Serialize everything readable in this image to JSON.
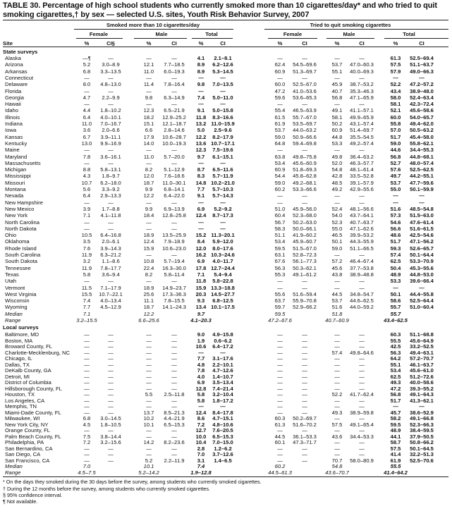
{
  "title": "TABLE 30. Percentage of high school students who currently smoked more than 10 cigarettes/day* and who tried to quit smoking cigarettes,† by sex — selected U.S. sites, Youth Risk Behavior Survey, 2007",
  "headers": {
    "group1": "Smoked more than 10 cigarettes/day",
    "group2": "Tried to quit smoking cigarettes",
    "female": "Female",
    "male": "Male",
    "total": "Total",
    "site": "Site",
    "pct": "%",
    "ci": "CI",
    "ci_first": "CI§"
  },
  "state_surveys": {
    "label": "State surveys",
    "rows": [
      {
        "site": "Alaska",
        "cells": [
          "—¶",
          "—",
          "—",
          "—",
          "4.1",
          "2.1–8.1",
          "—",
          "—",
          "—",
          "—",
          "61.3",
          "52.5–69.4"
        ]
      },
      {
        "site": "Arizona",
        "cells": [
          "5.2",
          "3.0–8.9",
          "12.1",
          "7.7–18.5",
          "8.9",
          "6.2–12.6",
          "62.4",
          "54.5–69.6",
          "53.7",
          "47.0–60.3",
          "57.5",
          "51.1–63.7"
        ]
      },
      {
        "site": "Arkansas",
        "cells": [
          "6.8",
          "3.3–13.5",
          "11.0",
          "6.0–19.3",
          "8.9",
          "5.3–14.5",
          "60.9",
          "51.3–69.7",
          "55.1",
          "40.0–69.3",
          "57.9",
          "49.0–66.3"
        ]
      },
      {
        "site": "Connecticut",
        "cells": [
          "—",
          "—",
          "—",
          "—",
          "—",
          "—",
          "—",
          "—",
          "—",
          "—",
          "—",
          "—"
        ]
      },
      {
        "site": "Delaware",
        "cells": [
          "8.0",
          "4.8–13.0",
          "11.4",
          "7.8–16.4",
          "9.8",
          "7.0–13.5",
          "60.0",
          "52.5–67.0",
          "45.9",
          "38.7–53.2",
          "52.2",
          "47.2–57.2"
        ]
      },
      {
        "site": "Florida",
        "cells": [
          "—",
          "—",
          "—",
          "—",
          "—",
          "—",
          "47.2",
          "41.0–53.6",
          "40.7",
          "35.3–46.3",
          "43.4",
          "38.9–48.0"
        ]
      },
      {
        "site": "Georgia",
        "cells": [
          "4.7",
          "2.2–9.9",
          "9.8",
          "6.3–14.9",
          "7.4",
          "5.0–11.0",
          "59.6",
          "53.6–65.3",
          "56.8",
          "47.1–65.9",
          "58.0",
          "52.4–63.4"
        ]
      },
      {
        "site": "Hawaii",
        "cells": [
          "—",
          "—",
          "—",
          "—",
          "—",
          "—",
          "—",
          "—",
          "—",
          "—",
          "58.1",
          "42.3–72.4"
        ]
      },
      {
        "site": "Idaho",
        "cells": [
          "4.4",
          "1.8–10.2",
          "12.3",
          "6.5–21.9",
          "9.1",
          "5.0–15.8",
          "55.4",
          "46.5–63.9",
          "49.1",
          "41.1–57.1",
          "52.1",
          "45.6–58.6"
        ]
      },
      {
        "site": "Illinois",
        "cells": [
          "6.4",
          "4.0–10.1",
          "18.2",
          "12.9–25.2",
          "11.8",
          "8.3–16.6",
          "61.5",
          "55.7–67.0",
          "58.1",
          "49.9–65.9",
          "60.0",
          "54.0–65.7"
        ]
      },
      {
        "site": "Indiana",
        "cells": [
          "11.0",
          "7.0–16.7",
          "15.1",
          "12.1–18.7",
          "13.2",
          "11.0–15.9",
          "61.9",
          "53.5–69.7",
          "50.2",
          "43.1–57.4",
          "55.8",
          "49.4–62.0"
        ]
      },
      {
        "site": "Iowa",
        "cells": [
          "3.6",
          "2.0–6.6",
          "6.6",
          "2.8–14.6",
          "5.0",
          "2.5–9.6",
          "53.7",
          "44.0–63.2",
          "60.9",
          "51.4–69.7",
          "57.0",
          "50.5–63.2"
        ]
      },
      {
        "site": "Kansas",
        "cells": [
          "6.7",
          "3.9–11.1",
          "17.9",
          "10.6–28.7",
          "12.2",
          "8.2–17.9",
          "59.0",
          "50.9–66.6",
          "44.8",
          "35.5–54.5",
          "51.7",
          "45.4–58.0"
        ]
      },
      {
        "site": "Kentucky",
        "cells": [
          "13.0",
          "9.9–16.9",
          "14.0",
          "10.0–19.3",
          "13.6",
          "10.7–17.1",
          "64.8",
          "59.4–69.8",
          "53.3",
          "49.2–57.4",
          "59.0",
          "55.8–62.1"
        ]
      },
      {
        "site": "Maine",
        "cells": [
          "—",
          "—",
          "—",
          "—",
          "12.3",
          "7.5–19.6",
          "—",
          "—",
          "—",
          "—",
          "44.6",
          "34.4–55.3"
        ]
      },
      {
        "site": "Maryland",
        "cells": [
          "7.8",
          "3.6–16.1",
          "11.0",
          "5.7–20.0",
          "9.7",
          "6.1–15.1",
          "63.8",
          "49.8–75.8",
          "49.8",
          "36.4–63.2",
          "56.8",
          "44.8–68.1"
        ]
      },
      {
        "site": "Massachusetts",
        "cells": [
          "—",
          "—",
          "—",
          "—",
          "—",
          "—",
          "53.4",
          "45.6–60.9",
          "52.0",
          "46.3–57.7",
          "52.7",
          "48.0–57.4"
        ]
      },
      {
        "site": "Michigan",
        "cells": [
          "8.8",
          "5.8–13.1",
          "8.2",
          "5.1–12.9",
          "8.7",
          "6.5–11.6",
          "60.9",
          "51.8–69.3",
          "54.8",
          "48.1–61.4",
          "57.6",
          "52.5–62.5"
        ]
      },
      {
        "site": "Mississippi",
        "cells": [
          "4.3",
          "1.8–9.7",
          "12.0",
          "7.6–18.6",
          "8.3",
          "5.7–11.9",
          "54.4",
          "45.8–62.8",
          "42.8",
          "33.5–52.8",
          "49.7",
          "44.2–55.1"
        ]
      },
      {
        "site": "Missouri",
        "cells": [
          "10.7",
          "6.2–18.0",
          "18.7",
          "11.0–30.1",
          "14.8",
          "10.2–21.0",
          "59.0",
          "49.2–68.1",
          "48.5",
          "39.1–57.9",
          "53.7",
          "47.7–59.6"
        ]
      },
      {
        "site": "Montana",
        "cells": [
          "5.6",
          "3.3–9.2",
          "9.9",
          "6.8–14.1",
          "7.7",
          "5.7–10.3",
          "60.2",
          "53.3–66.6",
          "49.2",
          "42.9–55.6",
          "55.0",
          "50.1–59.9"
        ]
      },
      {
        "site": "Nevada",
        "cells": [
          "6.4",
          "2.9–13.3",
          "12.2",
          "6.4–22.0",
          "9.1",
          "5.7–14.3",
          "—",
          "—",
          "—",
          "—",
          "—",
          "—"
        ]
      },
      {
        "site": "New Hampshire",
        "cells": [
          "—",
          "—",
          "—",
          "—",
          "—",
          "—",
          "—",
          "—",
          "—",
          "—",
          "—",
          "—"
        ]
      },
      {
        "site": "New Mexico",
        "cells": [
          "3.9",
          "1.7–8.8",
          "9.9",
          "6.9–13.9",
          "6.9",
          "5.2–9.2",
          "51.0",
          "45.9–56.0",
          "52.4",
          "48.1–56.6",
          "51.6",
          "48.5–54.8"
        ]
      },
      {
        "site": "New York",
        "cells": [
          "7.1",
          "4.1–11.8",
          "18.4",
          "12.8–25.8",
          "12.4",
          "8.7–17.3",
          "60.4",
          "52.3–68.0",
          "54.0",
          "43.7–64.1",
          "57.3",
          "51.5–63.0"
        ]
      },
      {
        "site": "North Carolina",
        "cells": [
          "—",
          "—",
          "—",
          "—",
          "—",
          "—",
          "56.7",
          "50.2–63.0",
          "52.3",
          "40.7–63.7",
          "54.6",
          "47.6–61.4"
        ]
      },
      {
        "site": "North Dakota",
        "cells": [
          "—",
          "—",
          "—",
          "—",
          "—",
          "—",
          "58.3",
          "50.0–66.1",
          "55.0",
          "47.1–62.6",
          "56.6",
          "51.6–61.5"
        ]
      },
      {
        "site": "Ohio",
        "cells": [
          "10.5",
          "6.4–16.8",
          "18.9",
          "13.5–25.9",
          "15.2",
          "11.3–20.1",
          "51.1",
          "41.9–60.2",
          "46.5",
          "39.9–53.2",
          "48.6",
          "42.5–54.6"
        ]
      },
      {
        "site": "Oklahoma",
        "cells": [
          "3.5",
          "2.0–6.1",
          "12.4",
          "7.9–18.9",
          "8.4",
          "5.9–12.0",
          "53.4",
          "45.9–60.7",
          "50.1",
          "44.3–55.9",
          "51.7",
          "47.1–56.2"
        ]
      },
      {
        "site": "Rhode Island",
        "cells": [
          "7.6",
          "3.9–14.3",
          "15.9",
          "10.6–23.0",
          "12.0",
          "8.0–17.6",
          "59.5",
          "51.5–67.0",
          "59.0",
          "51.1–66.5",
          "59.3",
          "52.6–65.7"
        ]
      },
      {
        "site": "South Carolina",
        "cells": [
          "11.9",
          "6.3–21.2",
          "—",
          "—",
          "16.2",
          "10.3–24.6",
          "63.1",
          "52.8–72.3",
          "—",
          "—",
          "57.4",
          "50.1–64.4"
        ]
      },
      {
        "site": "South Dakota",
        "cells": [
          "3.2",
          "1.1–8.6",
          "10.8",
          "5.7–19.4",
          "6.9",
          "4.0–11.7",
          "67.6",
          "56.1–77.3",
          "57.2",
          "46.4–67.4",
          "62.5",
          "53.3–70.9"
        ]
      },
      {
        "site": "Tennessee",
        "cells": [
          "11.9",
          "7.8–17.7",
          "22.4",
          "16.3–30.0",
          "17.8",
          "12.7–24.4",
          "56.3",
          "50.3–62.1",
          "45.6",
          "37.7–53.8",
          "50.4",
          "45.3–55.6"
        ]
      },
      {
        "site": "Texas",
        "cells": [
          "5.8",
          "3.6–9.4",
          "8.2",
          "5.8–11.4",
          "7.1",
          "5.4–9.4",
          "55.3",
          "49.1–61.2",
          "43.8",
          "38.9–48.8",
          "48.9",
          "44.8–53.0"
        ]
      },
      {
        "site": "Utah",
        "cells": [
          "—",
          "—",
          "—",
          "—",
          "11.8",
          "5.8–22.8",
          "—",
          "—",
          "—",
          "—",
          "53.3",
          "39.6–66.4"
        ]
      },
      {
        "site": "Vermont",
        "cells": [
          "11.5",
          "7.1–17.9",
          "18.9",
          "14.9–23.7",
          "15.9",
          "13.3–18.8",
          "—",
          "—",
          "—",
          "—",
          "—",
          "—"
        ]
      },
      {
        "site": "West Virginia",
        "cells": [
          "15.5",
          "10.7–22.1",
          "25.6",
          "17.3–36.3",
          "20.3",
          "14.5–27.7",
          "55.6",
          "51.6–59.4",
          "44.5",
          "34.8–54.7",
          "50.1",
          "44.4–55.8"
        ]
      },
      {
        "site": "Wisconsin",
        "cells": [
          "7.4",
          "4.0–13.4",
          "11.1",
          "7.8–15.5",
          "9.3",
          "6.8–12.5",
          "63.7",
          "55.9–70.8",
          "53.7",
          "44.6–62.5",
          "58.6",
          "52.5–64.4"
        ]
      },
      {
        "site": "Wyoming",
        "cells": [
          "7.7",
          "4.5–12.9",
          "18.7",
          "14.1–24.3",
          "13.4",
          "10.1–17.5",
          "59.7",
          "52.9–66.2",
          "51.6",
          "44.0–59.2",
          "55.7",
          "51.0–60.4"
        ]
      }
    ],
    "median": {
      "label": "Median",
      "values": [
        "7.1",
        "12.2",
        "9.7",
        "59.5",
        "51.8",
        "55.7"
      ]
    },
    "range": {
      "label": "Range",
      "values": [
        "3.2–15.5",
        "6.6–25.6",
        "4.1–20.3",
        "47.2–67.6",
        "40.7–60.9",
        "43.4–62.5"
      ]
    }
  },
  "local_surveys": {
    "label": "Local surveys",
    "rows": [
      {
        "site": "Baltimore, MD",
        "cells": [
          "—",
          "—",
          "—",
          "—",
          "9.0",
          "4.9–15.8",
          "—",
          "—",
          "—",
          "—",
          "60.3",
          "51.1–68.8"
        ]
      },
      {
        "site": "Boston, MA",
        "cells": [
          "—",
          "—",
          "—",
          "—",
          "1.9",
          "0.6–6.2",
          "—",
          "—",
          "—",
          "—",
          "55.5",
          "45.6–64.9"
        ]
      },
      {
        "site": "Broward County, FL",
        "cells": [
          "—",
          "—",
          "—",
          "—",
          "10.6",
          "6.4–17.2",
          "—",
          "—",
          "—",
          "—",
          "42.5",
          "33.2–52.5"
        ]
      },
      {
        "site": "Charlotte-Mecklenburg, NC",
        "cells": [
          "—",
          "—",
          "—",
          "—",
          "—",
          "—",
          "—",
          "—",
          "57.4",
          "49.8–64.6",
          "56.3",
          "49.4–63.1"
        ]
      },
      {
        "site": "Chicago, IL",
        "cells": [
          "—",
          "—",
          "—",
          "—",
          "7.7",
          "3.1–17.6",
          "—",
          "—",
          "—",
          "—",
          "64.2",
          "57.2–70.7"
        ]
      },
      {
        "site": "Dallas, TX",
        "cells": [
          "—",
          "—",
          "—",
          "—",
          "4.8",
          "2.2–10.1",
          "—",
          "—",
          "—",
          "—",
          "55.1",
          "46.1–63.7"
        ]
      },
      {
        "site": "DeKalb County, GA",
        "cells": [
          "—",
          "—",
          "—",
          "—",
          "7.8",
          "4.7–12.6",
          "—",
          "—",
          "—",
          "—",
          "53.4",
          "45.6–61.0"
        ]
      },
      {
        "site": "Detroit, MI",
        "cells": [
          "—",
          "—",
          "—",
          "—",
          "4.0",
          "1.4–10.7",
          "—",
          "—",
          "—",
          "—",
          "62.5",
          "51.2–72.6"
        ]
      },
      {
        "site": "District of Columbia",
        "cells": [
          "—",
          "—",
          "—",
          "—",
          "6.9",
          "3.5–13.4",
          "—",
          "—",
          "—",
          "—",
          "49.3",
          "40.0–58.6"
        ]
      },
      {
        "site": "Hillsborough County, FL",
        "cells": [
          "—",
          "—",
          "—",
          "—",
          "12.8",
          "7.4–21.4",
          "—",
          "—",
          "—",
          "—",
          "47.2",
          "39.3–55.2"
        ]
      },
      {
        "site": "Houston, TX",
        "cells": [
          "—",
          "—",
          "5.5",
          "2.5–11.8",
          "5.8",
          "3.2–10.4",
          "—",
          "—",
          "52.2",
          "41.7–62.4",
          "56.8",
          "49.1–64.3"
        ]
      },
      {
        "site": "Los Angeles, CA",
        "cells": [
          "—",
          "—",
          "—",
          "—",
          "5.8",
          "1.8–17.2",
          "—",
          "—",
          "—",
          "—",
          "51.7",
          "41.3–62.1"
        ]
      },
      {
        "site": "Memphis, TN",
        "cells": [
          "—",
          "—",
          "—",
          "—",
          "—",
          "—",
          "—",
          "—",
          "—",
          "—",
          "—",
          "—"
        ]
      },
      {
        "site": "Miami-Dade County, FL",
        "cells": [
          "—",
          "—",
          "13.7",
          "8.5–21.3",
          "12.4",
          "8.4–17.8",
          "—",
          "—",
          "49.3",
          "38.9–59.8",
          "45.7",
          "38.6–52.9"
        ]
      },
      {
        "site": "Milwaukee, WI",
        "cells": [
          "6.8",
          "3.0–14.5",
          "10.2",
          "4.4–21.9",
          "8.6",
          "4.7–15.1",
          "60.3",
          "50.2–69.7",
          "—",
          "—",
          "58.2",
          "49.1–66.8"
        ]
      },
      {
        "site": "New York City, NY",
        "cells": [
          "4.5",
          "1.8–10.5",
          "10.1",
          "6.5–15.3",
          "7.2",
          "4.8–10.6",
          "61.3",
          "51.6–70.2",
          "57.5",
          "49.1–65.4",
          "59.5",
          "52.3–66.3"
        ]
      },
      {
        "site": "Orange County, FL",
        "cells": [
          "—",
          "—",
          "—",
          "—",
          "12.7",
          "7.6–20.5",
          "—",
          "—",
          "—",
          "—",
          "48.9",
          "38.4–59.5"
        ]
      },
      {
        "site": "Palm Beach County, FL",
        "cells": [
          "7.5",
          "3.8–14.4",
          "—",
          "—",
          "10.0",
          "6.5–15.3",
          "44.5",
          "36.1–53.3",
          "43.6",
          "34.4–53.3",
          "44.1",
          "37.9–50.5"
        ]
      },
      {
        "site": "Philadelphia, PA",
        "cells": [
          "7.2",
          "3.2–15.6",
          "14.2",
          "8.2–23.6",
          "10.4",
          "7.0–15.0",
          "60.1",
          "47.3–71.7",
          "—",
          "—",
          "58.7",
          "50.8–66.2"
        ]
      },
      {
        "site": "San Bernardino, CA",
        "cells": [
          "—",
          "—",
          "—",
          "—",
          "2.8",
          "1.2–6.2",
          "—",
          "—",
          "—",
          "—",
          "57.5",
          "50.1–64.5"
        ]
      },
      {
        "site": "San Diego, CA",
        "cells": [
          "—",
          "—",
          "—",
          "—",
          "7.0",
          "3.7–12.6",
          "—",
          "—",
          "—",
          "—",
          "41.4",
          "32.2–51.3"
        ]
      },
      {
        "site": "San Francisco, CA",
        "cells": [
          "—",
          "—",
          "5.2",
          "2.2–11.9",
          "3.1",
          "1.4–6.5",
          "—",
          "—",
          "70.7",
          "58.0–80.9",
          "61.9",
          "52.5–70.6"
        ]
      }
    ],
    "median": {
      "label": "Median",
      "values": [
        "7.0",
        "10.1",
        "7.4",
        "60.2",
        "54.8",
        "55.5"
      ]
    },
    "range": {
      "label": "Range",
      "values": [
        "4.5–7.5",
        "5.2–14.2",
        "1.9–12.8",
        "44.5–61.3",
        "43.6–70.7",
        "41.4–64.2"
      ]
    }
  },
  "footnotes": [
    "* On the days they smoked during the 30 days before the survey, among students who currently smoked cigarettes.",
    "† During the 12 months before the survey, among students who currently smoked cigarettes.",
    "§ 95% confidence interval.",
    "¶ Not available."
  ]
}
